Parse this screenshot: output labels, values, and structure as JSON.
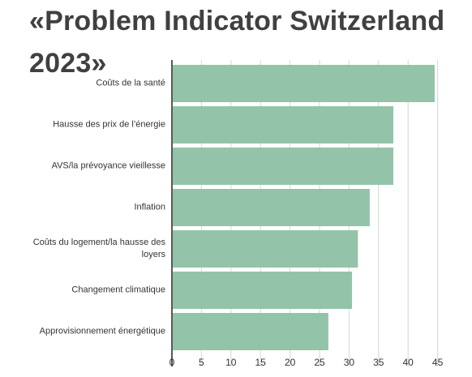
{
  "title": "«Problem Indicator Switzerland 2023»",
  "chart_data": {
    "type": "bar",
    "orientation": "horizontal",
    "title": "«Problem Indicator Switzerland 2023»",
    "categories": [
      "Coûts de la santé",
      "Hausse des prix de l’énergie",
      "AVS/la prévoyance vieillesse",
      "Inflation",
      "Coûts du logement/la hausse des loyers",
      "Changement climatique",
      "Approvisionnement énergétique"
    ],
    "values": [
      44.5,
      37.5,
      37.5,
      33.5,
      31.5,
      30.5,
      26.5
    ],
    "xlim": [
      0,
      46
    ],
    "xticks": [
      0,
      5,
      10,
      15,
      20,
      25,
      30,
      35,
      40,
      45
    ],
    "grid": true,
    "bar_color": "#93c4a9",
    "xlabel": "",
    "ylabel": ""
  }
}
